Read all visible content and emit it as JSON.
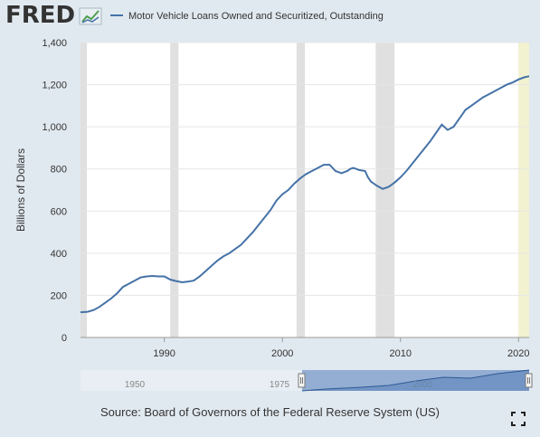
{
  "header": {
    "logo_text": "FRED",
    "legend_label": "Motor Vehicle Loans Owned and Securitized, Outstanding"
  },
  "colors": {
    "background": "#e1e9f0",
    "plot_background": "#ffffff",
    "series_line": "#4572a7",
    "recession_shade": "#e0e0e0",
    "forecast_shade": "#f2f2d0",
    "logo": "#333333"
  },
  "icons": {
    "logo": "fred-chart-logo-icon",
    "fullscreen": "fullscreen-expand-icon"
  },
  "chart_data": {
    "type": "line",
    "title": "",
    "xlabel": "",
    "ylabel": "Billions of Dollars",
    "ylim": [
      0,
      1400
    ],
    "xlim": [
      1982.9,
      2020.9
    ],
    "yticks": [
      "0",
      "200",
      "400",
      "600",
      "800",
      "1,000",
      "1,200",
      "1,400"
    ],
    "xticks": [
      "1990",
      "2000",
      "2010",
      "2020"
    ],
    "grid": true,
    "legend": "top-left",
    "series": [
      {
        "name": "Motor Vehicle Loans Owned and Securitized, Outstanding",
        "x": [
          1982.9,
          1983.5,
          1984.0,
          1984.5,
          1985.0,
          1985.5,
          1986.0,
          1986.5,
          1987.0,
          1987.5,
          1988.0,
          1988.5,
          1989.0,
          1989.5,
          1990.0,
          1990.5,
          1991.0,
          1991.5,
          1992.0,
          1992.5,
          1993.0,
          1993.5,
          1994.0,
          1994.5,
          1995.0,
          1995.5,
          1996.0,
          1996.5,
          1997.0,
          1997.5,
          1998.0,
          1998.5,
          1999.0,
          1999.5,
          2000.0,
          2000.5,
          2001.0,
          2001.5,
          2002.0,
          2002.5,
          2003.0,
          2003.5,
          2004.0,
          2004.5,
          2005.0,
          2005.5,
          2005.75,
          2006.0,
          2006.25,
          2006.5,
          2007.0,
          2007.25,
          2007.5,
          2008.0,
          2008.5,
          2009.0,
          2009.5,
          2010.0,
          2010.5,
          2011.0,
          2011.5,
          2012.0,
          2012.5,
          2013.0,
          2013.5,
          2014.0,
          2014.5,
          2015.0,
          2015.25,
          2015.5,
          2016.0,
          2016.5,
          2017.0,
          2017.5,
          2018.0,
          2018.5,
          2019.0,
          2019.5,
          2020.0,
          2020.5,
          2020.9
        ],
        "values": [
          120,
          122,
          130,
          145,
          165,
          185,
          210,
          240,
          255,
          270,
          285,
          290,
          292,
          290,
          290,
          275,
          268,
          262,
          265,
          270,
          290,
          315,
          340,
          365,
          385,
          400,
          420,
          440,
          470,
          500,
          535,
          570,
          605,
          650,
          680,
          700,
          730,
          755,
          775,
          790,
          805,
          820,
          820,
          790,
          780,
          790,
          800,
          805,
          800,
          795,
          790,
          760,
          740,
          720,
          705,
          715,
          735,
          760,
          790,
          825,
          860,
          895,
          930,
          970,
          1010,
          985,
          1000,
          1040,
          1060,
          1080,
          1100,
          1120,
          1140,
          1155,
          1170,
          1185,
          1200,
          1210,
          1225,
          1235,
          1240
        ]
      }
    ],
    "recessions": [
      [
        1982.9,
        1982.9
      ],
      [
        1990.5,
        1991.2
      ],
      [
        2001.2,
        2001.9
      ],
      [
        2007.9,
        2009.5
      ],
      [
        2020.0,
        2020.3
      ]
    ],
    "forecast_band": [
      2020.0,
      2020.9
    ],
    "navigator": {
      "ticks": [
        "1950",
        "1975",
        "2000"
      ],
      "range_start_label": "1975",
      "range_end_label": "2020"
    }
  },
  "source": {
    "text": "Source: Board of Governors of the Federal Reserve System (US)"
  }
}
